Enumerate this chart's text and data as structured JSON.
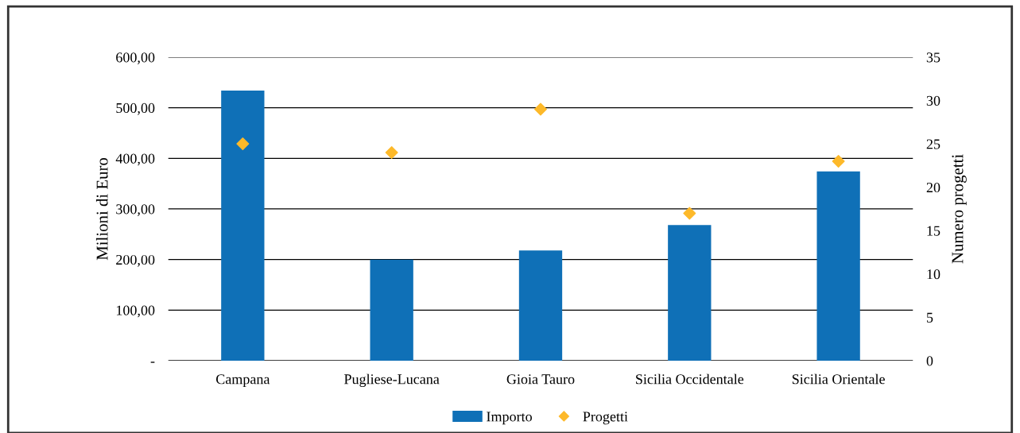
{
  "chart_data": {
    "type": "bar",
    "ylabel": "Milioni di Euro",
    "y2label": "Numero progetti",
    "categories": [
      "Campana",
      "Pugliese-Lucana",
      "Gioia Tauro",
      "Sicilia Occidentale",
      "Sicilia Orientale"
    ],
    "series": [
      {
        "name": "Importo",
        "color": "#0f70b7",
        "values": [
          534,
          200,
          218,
          268,
          374
        ]
      },
      {
        "name": "Progetti",
        "type": "scatter",
        "axis": "y2",
        "color": "#fdb92a",
        "marker": "diamond",
        "values": [
          25,
          24,
          29,
          17,
          23
        ]
      }
    ],
    "ylim": [
      0,
      600
    ],
    "yticks": [
      {
        "value": 0,
        "label": "-"
      },
      {
        "value": 100,
        "label": "100,00"
      },
      {
        "value": 200,
        "label": "200,00"
      },
      {
        "value": 300,
        "label": "300,00"
      },
      {
        "value": 400,
        "label": "400,00"
      },
      {
        "value": 500,
        "label": "500,00"
      },
      {
        "value": 600,
        "label": "600,00"
      }
    ],
    "y2lim": [
      0,
      35
    ],
    "y2ticks": [
      0,
      5,
      10,
      15,
      20,
      25,
      30,
      35
    ],
    "grid": "y",
    "legend": "bottom"
  }
}
